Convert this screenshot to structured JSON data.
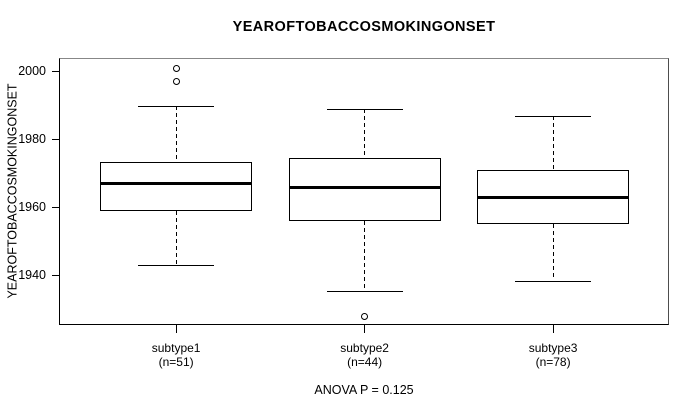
{
  "title": "YEAROFTOBACCOSMOKINGONSET",
  "annotation": "ANOVA P = 0.125",
  "colors": {
    "line": "#000000",
    "background": "#ffffff",
    "border_top": "#878787"
  },
  "chart_data": {
    "type": "boxplot",
    "title": "YEAROFTOBACCOSMOKINGONSET",
    "ylabel": "YEAROFTOBACCOSMOKINGONSET",
    "xlabel": "",
    "ylim": [
      1925.4,
      2004.0
    ],
    "yticks": [
      2000,
      1980,
      1960,
      1940
    ],
    "grid": false,
    "legend": "none",
    "categories": [
      "subtype1",
      "subtype2",
      "subtype3"
    ],
    "groups": [
      {
        "label": "subtype1",
        "sublabel": "(n=51)",
        "n": 51,
        "whisker_low": 1943,
        "q1": 1959,
        "median": 1967,
        "q3": 1973.5,
        "whisker_high": 1990,
        "outliers": [
          1997,
          2001
        ]
      },
      {
        "label": "subtype2",
        "sublabel": "(n=44)",
        "n": 44,
        "whisker_low": 1935.5,
        "q1": 1956,
        "median": 1966,
        "q3": 1974.5,
        "whisker_high": 1989,
        "outliers": [
          1928
        ]
      },
      {
        "label": "subtype3",
        "sublabel": "(n=78)",
        "n": 78,
        "whisker_low": 1938.5,
        "q1": 1955,
        "median": 1963,
        "q3": 1971,
        "whisker_high": 1987,
        "outliers": []
      }
    ],
    "annotation": "ANOVA P = 0.125"
  }
}
